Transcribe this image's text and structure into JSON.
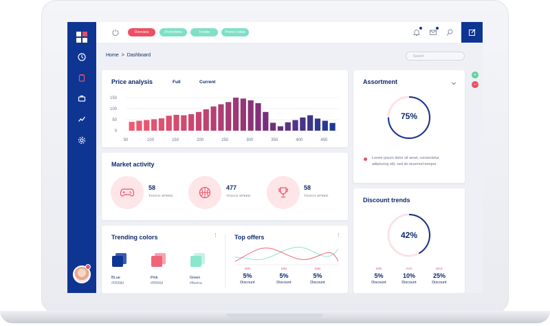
{
  "topbar": {
    "pills": [
      "Overview",
      "Promotions",
      "Trends",
      "Promo codes"
    ]
  },
  "breadcrumb": {
    "home": "Home",
    "separator": ">",
    "current": "Dashboard"
  },
  "search": {
    "placeholder": "Search"
  },
  "price_analysis": {
    "title": "Price analysis",
    "tabs": [
      "Full",
      "Current"
    ]
  },
  "chart_data": {
    "type": "bar",
    "title": "Price analysis",
    "xlabel": "",
    "ylabel": "",
    "ylim": [
      0,
      150
    ],
    "xlim": [
      50,
      480
    ],
    "xticks": [
      50,
      100,
      150,
      200,
      250,
      300,
      350,
      400,
      450
    ],
    "yticks": [
      0,
      50,
      100,
      150
    ],
    "ytick_labels": [
      "0",
      "50",
      "100",
      "150"
    ],
    "xtick_labels": [
      "50",
      "100",
      "150",
      "200",
      "250",
      "300",
      "350",
      "400",
      "450"
    ],
    "grid": true,
    "x": [
      62,
      77,
      92,
      107,
      122,
      137,
      152,
      167,
      182,
      197,
      212,
      227,
      242,
      257,
      272,
      287,
      302,
      317,
      332,
      347,
      362,
      377,
      392,
      407,
      422,
      437,
      452,
      467
    ],
    "values": [
      40,
      45,
      48,
      52,
      56,
      68,
      72,
      70,
      75,
      85,
      97,
      110,
      120,
      130,
      150,
      146,
      138,
      125,
      85,
      36,
      20,
      38,
      48,
      60,
      70,
      55,
      45,
      35
    ],
    "colors_gradient": [
      "#f05a70",
      "#c8456f",
      "#7a2f7a",
      "#1d3a94"
    ]
  },
  "market": {
    "title": "Market activity",
    "items": [
      {
        "icon": "gamepad-icon",
        "value": "58",
        "label": "TOUCH SPEED"
      },
      {
        "icon": "basketball-icon",
        "value": "477",
        "label": "TOUCH SPEED"
      },
      {
        "icon": "trophy-icon",
        "value": "58",
        "label": "TOUCH SPEED"
      }
    ]
  },
  "trending": {
    "title": "Trending colors",
    "swatches": [
      {
        "name": "BLue",
        "hex": "#f3558d",
        "front": "#0e3592",
        "back": "#3a5cb8"
      },
      {
        "name": "Pink",
        "hex": "#f9556d",
        "front": "#f06478",
        "back": "#f8a3b1"
      },
      {
        "name": "Green",
        "hex": "#8oeIca",
        "front": "#8ae6cf",
        "back": "#c4f2e5"
      }
    ]
  },
  "top_offers": {
    "title": "Top offers",
    "items": [
      {
        "label": "MIN",
        "value": "5%",
        "sub": "Discount"
      },
      {
        "label": "MIN",
        "value": "5%",
        "sub": "Discount"
      },
      {
        "label": "MIN",
        "value": "5%",
        "sub": "Discount"
      }
    ]
  },
  "assortment": {
    "title": "Assortment",
    "percent": "75%",
    "progress": 0.75,
    "note_line1": "Lorem ipsum dolor sit amet, consectetur",
    "note_line2": "adipiscing elit, sed do eiusmod tempor"
  },
  "discount": {
    "title": "Discount trends",
    "percent": "42%",
    "progress": 0.42,
    "items": [
      {
        "label": "MIN",
        "value": "5%",
        "sub": "Discount"
      },
      {
        "label": "AVG",
        "value": "10%",
        "sub": "Discount"
      },
      {
        "label": "MAX",
        "value": "25%",
        "sub": "Discount"
      }
    ]
  },
  "colors": {
    "navy": "#0e3592",
    "pink": "#ee4f63",
    "mint": "#7fe0c7",
    "green_btn": "#5dd39e"
  }
}
